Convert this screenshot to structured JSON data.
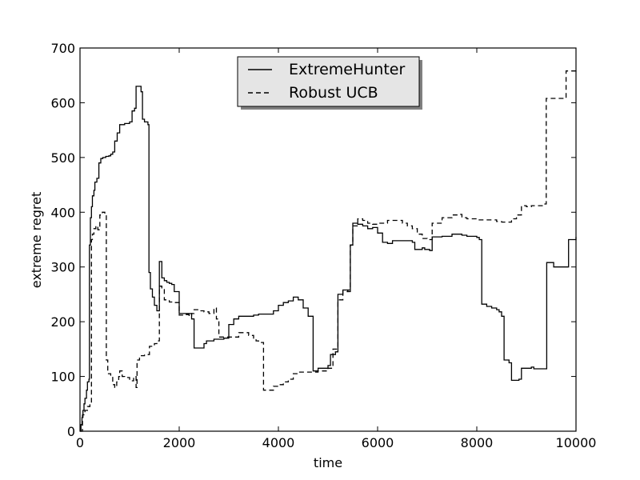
{
  "chart_data": {
    "type": "line",
    "xlabel": "time",
    "ylabel": "extreme regret",
    "xlim": [
      0,
      10000
    ],
    "ylim": [
      0,
      700
    ],
    "x_ticks": [
      0,
      2000,
      4000,
      6000,
      8000,
      10000
    ],
    "y_ticks": [
      0,
      100,
      200,
      300,
      400,
      500,
      600,
      700
    ],
    "grid": false,
    "legend_position": "upper-center",
    "series": [
      {
        "name": "ExtremeHunter",
        "style": "solid",
        "color": "#000000",
        "points": [
          [
            0,
            0
          ],
          [
            20,
            12
          ],
          [
            40,
            25
          ],
          [
            60,
            38
          ],
          [
            80,
            50
          ],
          [
            100,
            60
          ],
          [
            130,
            75
          ],
          [
            150,
            90
          ],
          [
            180,
            95
          ],
          [
            190,
            340
          ],
          [
            210,
            390
          ],
          [
            230,
            410
          ],
          [
            250,
            430
          ],
          [
            280,
            440
          ],
          [
            300,
            455
          ],
          [
            340,
            462
          ],
          [
            380,
            490
          ],
          [
            420,
            498
          ],
          [
            460,
            500
          ],
          [
            520,
            502
          ],
          [
            580,
            503
          ],
          [
            620,
            506
          ],
          [
            660,
            510
          ],
          [
            700,
            530
          ],
          [
            750,
            545
          ],
          [
            800,
            560
          ],
          [
            900,
            562
          ],
          [
            1000,
            565
          ],
          [
            1050,
            585
          ],
          [
            1100,
            590
          ],
          [
            1130,
            630
          ],
          [
            1180,
            630
          ],
          [
            1230,
            620
          ],
          [
            1260,
            570
          ],
          [
            1300,
            565
          ],
          [
            1370,
            560
          ],
          [
            1390,
            290
          ],
          [
            1420,
            260
          ],
          [
            1460,
            245
          ],
          [
            1500,
            230
          ],
          [
            1550,
            220
          ],
          [
            1600,
            310
          ],
          [
            1650,
            280
          ],
          [
            1700,
            275
          ],
          [
            1750,
            272
          ],
          [
            1800,
            270
          ],
          [
            1850,
            268
          ],
          [
            1900,
            255
          ],
          [
            2000,
            215
          ],
          [
            2150,
            215
          ],
          [
            2250,
            205
          ],
          [
            2300,
            152
          ],
          [
            2500,
            160
          ],
          [
            2550,
            165
          ],
          [
            2700,
            168
          ],
          [
            2900,
            170
          ],
          [
            3000,
            195
          ],
          [
            3100,
            205
          ],
          [
            3200,
            210
          ],
          [
            3500,
            212
          ],
          [
            3600,
            214
          ],
          [
            3900,
            220
          ],
          [
            4000,
            230
          ],
          [
            4100,
            235
          ],
          [
            4200,
            238
          ],
          [
            4300,
            245
          ],
          [
            4400,
            240
          ],
          [
            4500,
            225
          ],
          [
            4600,
            210
          ],
          [
            4700,
            110
          ],
          [
            4800,
            115
          ],
          [
            5000,
            120
          ],
          [
            5050,
            140
          ],
          [
            5150,
            145
          ],
          [
            5200,
            250
          ],
          [
            5300,
            258
          ],
          [
            5400,
            255
          ],
          [
            5450,
            340
          ],
          [
            5500,
            380
          ],
          [
            5600,
            378
          ],
          [
            5700,
            375
          ],
          [
            5800,
            370
          ],
          [
            5900,
            372
          ],
          [
            6000,
            362
          ],
          [
            6100,
            345
          ],
          [
            6200,
            343
          ],
          [
            6300,
            348
          ],
          [
            6500,
            348
          ],
          [
            6700,
            345
          ],
          [
            6750,
            332
          ],
          [
            6900,
            335
          ],
          [
            6950,
            332
          ],
          [
            7050,
            330
          ],
          [
            7100,
            355
          ],
          [
            7300,
            356
          ],
          [
            7500,
            360
          ],
          [
            7700,
            358
          ],
          [
            7800,
            356
          ],
          [
            8000,
            354
          ],
          [
            8050,
            350
          ],
          [
            8100,
            232
          ],
          [
            8200,
            228
          ],
          [
            8300,
            225
          ],
          [
            8400,
            222
          ],
          [
            8450,
            218
          ],
          [
            8500,
            210
          ],
          [
            8550,
            130
          ],
          [
            8650,
            125
          ],
          [
            8700,
            93
          ],
          [
            8850,
            95
          ],
          [
            8900,
            115
          ],
          [
            9000,
            115
          ],
          [
            9100,
            117
          ],
          [
            9150,
            114
          ],
          [
            9400,
            114
          ],
          [
            9410,
            308
          ],
          [
            9500,
            308
          ],
          [
            9550,
            300
          ],
          [
            9800,
            300
          ],
          [
            9850,
            350
          ],
          [
            9950,
            350
          ],
          [
            10000,
            355
          ]
        ]
      },
      {
        "name": "Robust UCB",
        "style": "dashed",
        "color": "#000000",
        "points": [
          [
            0,
            0
          ],
          [
            50,
            30
          ],
          [
            100,
            38
          ],
          [
            150,
            45
          ],
          [
            200,
            50
          ],
          [
            230,
            350
          ],
          [
            250,
            360
          ],
          [
            280,
            370
          ],
          [
            320,
            375
          ],
          [
            360,
            368
          ],
          [
            400,
            395
          ],
          [
            450,
            400
          ],
          [
            500,
            395
          ],
          [
            530,
            130
          ],
          [
            560,
            105
          ],
          [
            620,
            100
          ],
          [
            660,
            85
          ],
          [
            700,
            80
          ],
          [
            740,
            90
          ],
          [
            780,
            100
          ],
          [
            800,
            110
          ],
          [
            850,
            100
          ],
          [
            900,
            98
          ],
          [
            1000,
            92
          ],
          [
            1080,
            100
          ],
          [
            1130,
            80
          ],
          [
            1150,
            130
          ],
          [
            1200,
            138
          ],
          [
            1300,
            140
          ],
          [
            1400,
            155
          ],
          [
            1500,
            160
          ],
          [
            1550,
            165
          ],
          [
            1600,
            265
          ],
          [
            1650,
            260
          ],
          [
            1700,
            240
          ],
          [
            1800,
            236
          ],
          [
            1900,
            235
          ],
          [
            2000,
            212
          ],
          [
            2100,
            213
          ],
          [
            2200,
            210
          ],
          [
            2250,
            215
          ],
          [
            2300,
            222
          ],
          [
            2400,
            220
          ],
          [
            2500,
            218
          ],
          [
            2600,
            215
          ],
          [
            2700,
            225
          ],
          [
            2750,
            205
          ],
          [
            2800,
            172
          ],
          [
            3000,
            172
          ],
          [
            3200,
            180
          ],
          [
            3400,
            175
          ],
          [
            3500,
            170
          ],
          [
            3550,
            165
          ],
          [
            3600,
            162
          ],
          [
            3700,
            75
          ],
          [
            3800,
            75
          ],
          [
            3900,
            82
          ],
          [
            4000,
            85
          ],
          [
            4100,
            90
          ],
          [
            4200,
            95
          ],
          [
            4300,
            105
          ],
          [
            4400,
            108
          ],
          [
            4600,
            108
          ],
          [
            4800,
            110
          ],
          [
            5000,
            115
          ],
          [
            5100,
            150
          ],
          [
            5200,
            240
          ],
          [
            5300,
            255
          ],
          [
            5400,
            258
          ],
          [
            5450,
            340
          ],
          [
            5500,
            375
          ],
          [
            5600,
            388
          ],
          [
            5700,
            385
          ],
          [
            5800,
            380
          ],
          [
            5900,
            378
          ],
          [
            6000,
            380
          ],
          [
            6200,
            385
          ],
          [
            6400,
            385
          ],
          [
            6500,
            380
          ],
          [
            6600,
            375
          ],
          [
            6700,
            370
          ],
          [
            6800,
            360
          ],
          [
            6900,
            352
          ],
          [
            7000,
            350
          ],
          [
            7100,
            380
          ],
          [
            7300,
            390
          ],
          [
            7500,
            395
          ],
          [
            7600,
            396
          ],
          [
            7700,
            390
          ],
          [
            7800,
            388
          ],
          [
            8000,
            386
          ],
          [
            8200,
            386
          ],
          [
            8400,
            383
          ],
          [
            8500,
            382
          ],
          [
            8700,
            388
          ],
          [
            8800,
            395
          ],
          [
            8900,
            412
          ],
          [
            9000,
            410
          ],
          [
            9100,
            412
          ],
          [
            9300,
            412
          ],
          [
            9350,
            415
          ],
          [
            9400,
            608
          ],
          [
            9700,
            608
          ],
          [
            9800,
            658
          ],
          [
            9950,
            658
          ],
          [
            10000,
            660
          ]
        ]
      }
    ]
  }
}
